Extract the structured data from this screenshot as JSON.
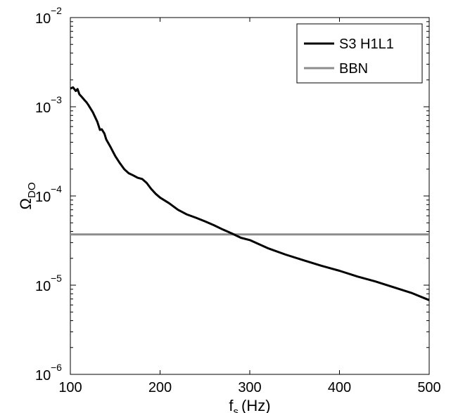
{
  "chart_data": {
    "type": "line",
    "xlabel": "f",
    "xlabel_sub": "s",
    "xlabel_unit": "(Hz)",
    "ylabel": "Ω",
    "ylabel_sub": "DO",
    "xlim": [
      100,
      500
    ],
    "ylim": [
      1e-06,
      0.01
    ],
    "y_scale": "log",
    "grid": false,
    "legend_position": "top-right",
    "x_ticks": [
      100,
      200,
      300,
      400,
      500
    ],
    "x_tick_labels": [
      "100",
      "200",
      "300",
      "400",
      "500"
    ],
    "y_ticks": [
      {
        "value": 1e-06,
        "base": "10",
        "exp": "−6"
      },
      {
        "value": 1e-05,
        "base": "10",
        "exp": "−5"
      },
      {
        "value": 0.0001,
        "base": "10",
        "exp": "−4"
      },
      {
        "value": 0.001,
        "base": "10",
        "exp": "−3"
      },
      {
        "value": 0.01,
        "base": "10",
        "exp": "−2"
      }
    ],
    "series": [
      {
        "name": "S3 H1L1",
        "color": "#000000",
        "x": [
          100,
          103,
          106,
          108,
          110,
          113,
          116,
          118,
          120,
          125,
          130,
          133,
          135,
          138,
          140,
          145,
          150,
          155,
          160,
          165,
          170,
          175,
          180,
          185,
          190,
          195,
          200,
          210,
          220,
          230,
          240,
          250,
          260,
          270,
          280,
          290,
          300,
          320,
          340,
          360,
          380,
          400,
          420,
          440,
          460,
          480,
          500
        ],
        "y": [
          0.0016,
          0.00165,
          0.0015,
          0.00158,
          0.00138,
          0.00128,
          0.00118,
          0.00112,
          0.00105,
          0.00087,
          0.00068,
          0.00055,
          0.00056,
          0.0005,
          0.00043,
          0.00035,
          0.00028,
          0.000235,
          0.0002,
          0.00018,
          0.00017,
          0.00016,
          0.000155,
          0.00014,
          0.00012,
          0.000106,
          9.6e-05,
          8.3e-05,
          7e-05,
          6.2e-05,
          5.7e-05,
          5.2e-05,
          4.7e-05,
          4.2e-05,
          3.8e-05,
          3.4e-05,
          3.2e-05,
          2.6e-05,
          2.2e-05,
          1.9e-05,
          1.65e-05,
          1.45e-05,
          1.25e-05,
          1.1e-05,
          9.5e-06,
          8.2e-06,
          6.8e-06
        ]
      },
      {
        "name": "BBN",
        "color": "#8c8c8c",
        "x": [
          100,
          500
        ],
        "y": [
          3.7e-05,
          3.7e-05
        ]
      }
    ]
  }
}
